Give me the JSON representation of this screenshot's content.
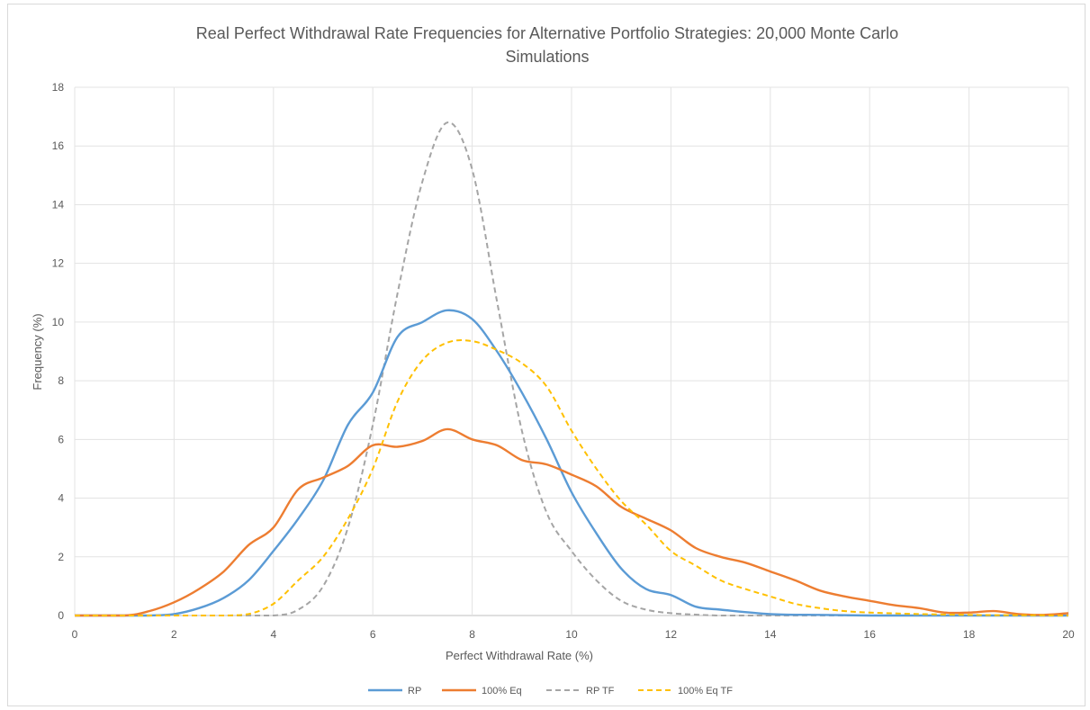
{
  "chart_data": {
    "type": "line",
    "title_lines": [
      "Real Perfect Withdrawal Rate Frequencies for Alternative Portfolio Strategies: 20,000 Monte Carlo",
      "Simulations"
    ],
    "xlabel": "Perfect Withdrawal Rate (%)",
    "ylabel": "Frequency (%)",
    "xlim": [
      0,
      20
    ],
    "ylim": [
      0,
      18
    ],
    "x_ticks": [
      0,
      2,
      4,
      6,
      8,
      10,
      12,
      14,
      16,
      18,
      20
    ],
    "y_ticks": [
      0,
      2,
      4,
      6,
      8,
      10,
      12,
      14,
      16,
      18
    ],
    "grid": true,
    "legend_position": "bottom",
    "series": [
      {
        "name": "RP",
        "color": "#5b9bd5",
        "dash": "solid",
        "points": [
          [
            0,
            0
          ],
          [
            1,
            0
          ],
          [
            1.5,
            0
          ],
          [
            2,
            0.05
          ],
          [
            2.5,
            0.25
          ],
          [
            3,
            0.6
          ],
          [
            3.5,
            1.2
          ],
          [
            4,
            2.2
          ],
          [
            4.5,
            3.3
          ],
          [
            5,
            4.6
          ],
          [
            5.5,
            6.5
          ],
          [
            6,
            7.6
          ],
          [
            6.5,
            9.5
          ],
          [
            7,
            10.0
          ],
          [
            7.5,
            10.4
          ],
          [
            8,
            10.1
          ],
          [
            8.5,
            9.0
          ],
          [
            9,
            7.6
          ],
          [
            9.5,
            6.0
          ],
          [
            10,
            4.2
          ],
          [
            10.5,
            2.8
          ],
          [
            11,
            1.6
          ],
          [
            11.5,
            0.9
          ],
          [
            12,
            0.7
          ],
          [
            12.5,
            0.3
          ],
          [
            13,
            0.2
          ],
          [
            14,
            0.05
          ],
          [
            15,
            0.02
          ],
          [
            16,
            0
          ],
          [
            17,
            0
          ],
          [
            18,
            0
          ],
          [
            19,
            0
          ],
          [
            20,
            0
          ]
        ]
      },
      {
        "name": "100% Eq",
        "color": "#ed7d31",
        "dash": "solid",
        "points": [
          [
            0,
            0
          ],
          [
            1,
            0
          ],
          [
            1.5,
            0.15
          ],
          [
            2,
            0.45
          ],
          [
            2.5,
            0.9
          ],
          [
            3,
            1.5
          ],
          [
            3.5,
            2.4
          ],
          [
            4,
            3.0
          ],
          [
            4.5,
            4.3
          ],
          [
            5,
            4.7
          ],
          [
            5.5,
            5.1
          ],
          [
            6,
            5.8
          ],
          [
            6.5,
            5.75
          ],
          [
            7,
            5.95
          ],
          [
            7.5,
            6.35
          ],
          [
            8,
            6.0
          ],
          [
            8.5,
            5.8
          ],
          [
            9,
            5.3
          ],
          [
            9.5,
            5.15
          ],
          [
            10,
            4.8
          ],
          [
            10.5,
            4.4
          ],
          [
            11,
            3.7
          ],
          [
            11.5,
            3.3
          ],
          [
            12,
            2.9
          ],
          [
            12.5,
            2.3
          ],
          [
            13,
            2.0
          ],
          [
            13.5,
            1.8
          ],
          [
            14,
            1.5
          ],
          [
            14.5,
            1.2
          ],
          [
            15,
            0.85
          ],
          [
            15.5,
            0.65
          ],
          [
            16,
            0.5
          ],
          [
            16.5,
            0.35
          ],
          [
            17,
            0.25
          ],
          [
            17.5,
            0.1
          ],
          [
            18,
            0.1
          ],
          [
            18.5,
            0.15
          ],
          [
            19,
            0.05
          ],
          [
            19.5,
            0.02
          ],
          [
            20,
            0.08
          ]
        ]
      },
      {
        "name": "RP TF",
        "color": "#a5a5a5",
        "dash": "dashed",
        "points": [
          [
            0,
            0
          ],
          [
            2,
            0
          ],
          [
            3,
            0
          ],
          [
            4,
            0
          ],
          [
            4.5,
            0.2
          ],
          [
            5,
            1.0
          ],
          [
            5.5,
            3.0
          ],
          [
            6,
            6.5
          ],
          [
            6.5,
            11.0
          ],
          [
            7,
            14.8
          ],
          [
            7.5,
            16.8
          ],
          [
            8,
            15.2
          ],
          [
            8.5,
            10.7
          ],
          [
            9,
            6.3
          ],
          [
            9.5,
            3.5
          ],
          [
            10,
            2.2
          ],
          [
            10.5,
            1.2
          ],
          [
            11,
            0.5
          ],
          [
            11.5,
            0.2
          ],
          [
            12,
            0.08
          ],
          [
            12.5,
            0.03
          ],
          [
            13,
            0
          ],
          [
            14,
            0
          ],
          [
            16,
            0
          ],
          [
            18,
            0
          ],
          [
            20,
            0
          ]
        ]
      },
      {
        "name": "100% Eq TF",
        "color": "#ffc000",
        "dash": "dashed",
        "points": [
          [
            0,
            0
          ],
          [
            1,
            0
          ],
          [
            2,
            0
          ],
          [
            2.5,
            0
          ],
          [
            3,
            0
          ],
          [
            3.5,
            0.05
          ],
          [
            4,
            0.4
          ],
          [
            4.5,
            1.2
          ],
          [
            5,
            2.0
          ],
          [
            5.5,
            3.3
          ],
          [
            6,
            5.0
          ],
          [
            6.5,
            7.3
          ],
          [
            7,
            8.7
          ],
          [
            7.5,
            9.3
          ],
          [
            8,
            9.35
          ],
          [
            8.5,
            9.05
          ],
          [
            9,
            8.6
          ],
          [
            9.5,
            7.8
          ],
          [
            10,
            6.3
          ],
          [
            10.5,
            5.0
          ],
          [
            11,
            3.9
          ],
          [
            11.5,
            3.1
          ],
          [
            12,
            2.2
          ],
          [
            12.5,
            1.7
          ],
          [
            13,
            1.2
          ],
          [
            13.5,
            0.9
          ],
          [
            14,
            0.65
          ],
          [
            14.5,
            0.4
          ],
          [
            15,
            0.25
          ],
          [
            15.5,
            0.15
          ],
          [
            16,
            0.1
          ],
          [
            17,
            0.05
          ],
          [
            18,
            0.02
          ],
          [
            19,
            0.01
          ],
          [
            20,
            0
          ]
        ]
      }
    ]
  }
}
